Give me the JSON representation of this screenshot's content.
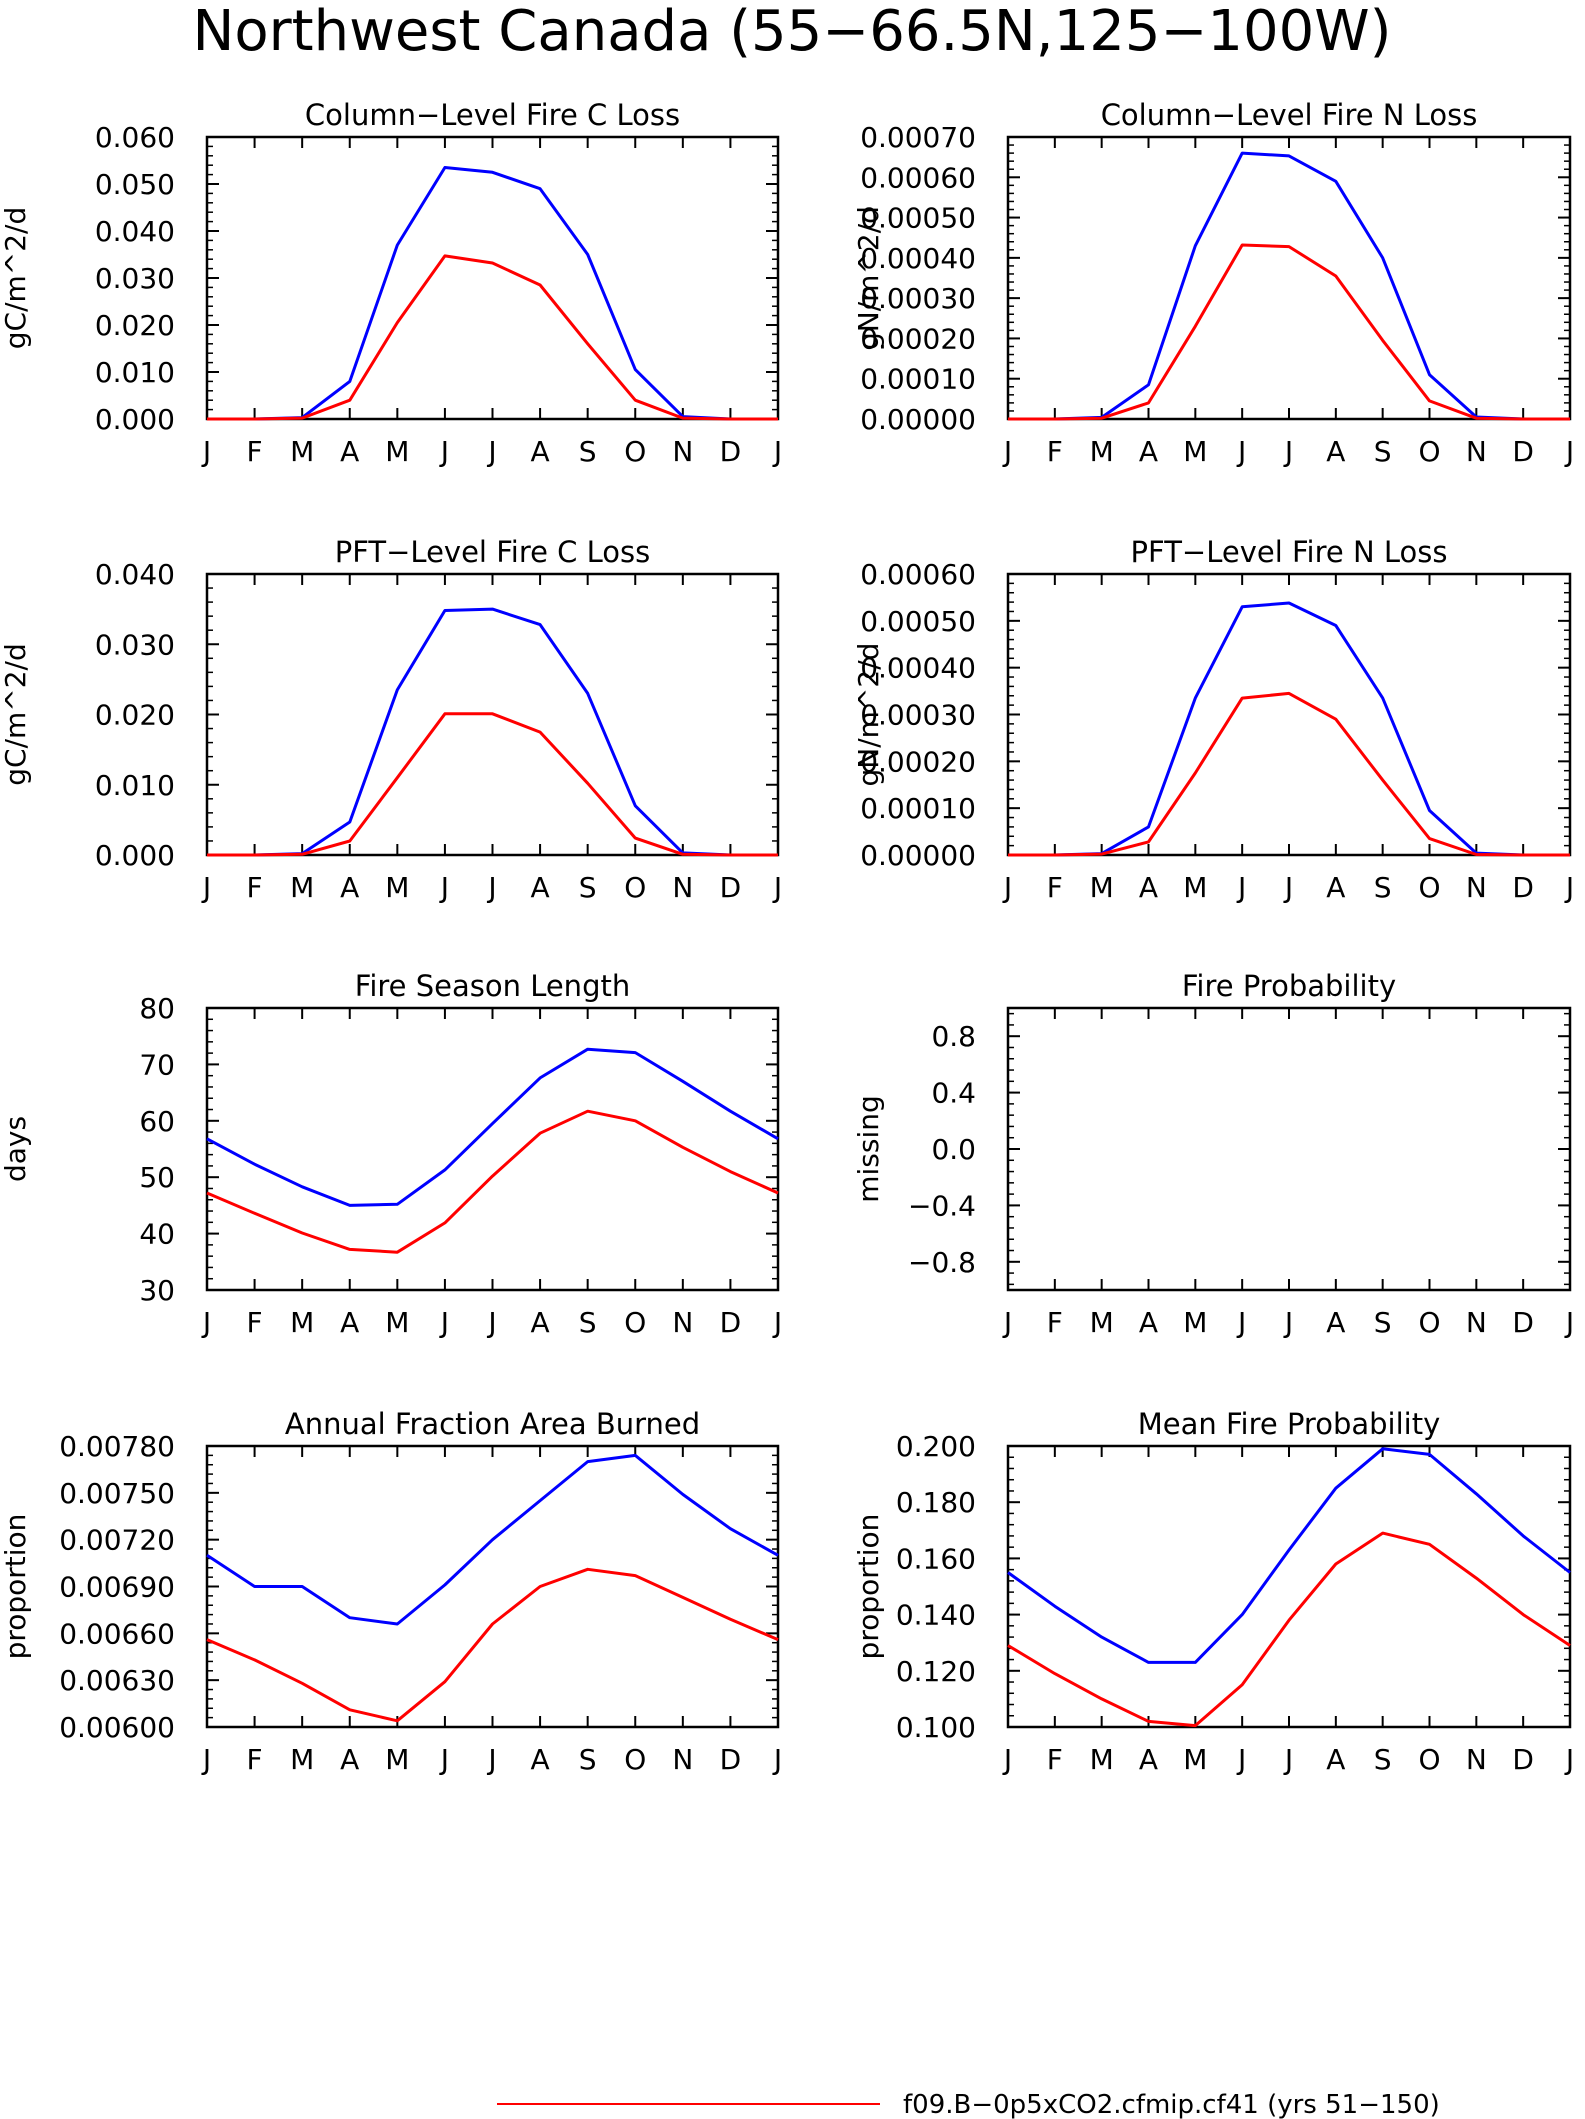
{
  "figure": {
    "title": "Northwest Canada (55−66.5N,125−100W)",
    "legend": [
      {
        "label": "f09.B−0p5xCO2.cfmip.cf41 (yrs 51−150)",
        "color": "#ff0000"
      }
    ]
  },
  "chart_data": [
    {
      "type": "line",
      "title": "Column−Level Fire C Loss",
      "ylabel": "gC/m^2/d",
      "ylim": [
        0,
        0.06
      ],
      "y_ticks": [
        "0.000",
        "0.010",
        "0.020",
        "0.030",
        "0.040",
        "0.050",
        "0.060"
      ],
      "categories": [
        "J",
        "F",
        "M",
        "A",
        "M",
        "J",
        "J",
        "A",
        "S",
        "O",
        "N",
        "D",
        "J"
      ],
      "series": [
        {
          "color": "#0000ff",
          "values": [
            0,
            0,
            0.0003,
            0.008,
            0.037,
            0.0535,
            0.0525,
            0.049,
            0.035,
            0.0105,
            0.0005,
            0,
            0
          ]
        },
        {
          "color": "#ff0000",
          "values": [
            0,
            0,
            0.0002,
            0.004,
            0.0205,
            0.0347,
            0.0332,
            0.0285,
            0.016,
            0.004,
            0.0002,
            0,
            0
          ]
        }
      ]
    },
    {
      "type": "line",
      "title": "Column−Level Fire N Loss",
      "ylabel": "gN/m^2/d",
      "ylim": [
        0,
        0.0007
      ],
      "y_ticks": [
        "0.00000",
        "0.00010",
        "0.00020",
        "0.00030",
        "0.00040",
        "0.00050",
        "0.00060",
        "0.00070"
      ],
      "categories": [
        "J",
        "F",
        "M",
        "A",
        "M",
        "J",
        "J",
        "A",
        "S",
        "O",
        "N",
        "D",
        "J"
      ],
      "series": [
        {
          "color": "#0000ff",
          "values": [
            0,
            0,
            4e-06,
            8.5e-05,
            0.00043,
            0.00066,
            0.000653,
            0.00059,
            0.0004,
            0.00011,
            5e-06,
            0,
            0
          ]
        },
        {
          "color": "#ff0000",
          "values": [
            0,
            0,
            2e-06,
            4e-05,
            0.00023,
            0.000432,
            0.000428,
            0.000355,
            0.000195,
            4.5e-05,
            2e-06,
            0,
            0
          ]
        }
      ]
    },
    {
      "type": "line",
      "title": "PFT−Level Fire C Loss",
      "ylabel": "gC/m^2/d",
      "ylim": [
        0,
        0.04
      ],
      "y_ticks": [
        "0.000",
        "0.010",
        "0.020",
        "0.030",
        "0.040"
      ],
      "categories": [
        "J",
        "F",
        "M",
        "A",
        "M",
        "J",
        "J",
        "A",
        "S",
        "O",
        "N",
        "D",
        "J"
      ],
      "series": [
        {
          "color": "#0000ff",
          "values": [
            0,
            0,
            0.0002,
            0.0047,
            0.0235,
            0.0348,
            0.035,
            0.0328,
            0.023,
            0.007,
            0.0003,
            0,
            0
          ]
        },
        {
          "color": "#ff0000",
          "values": [
            0,
            0,
            0.0001,
            0.002,
            0.011,
            0.0201,
            0.0201,
            0.0175,
            0.0102,
            0.0024,
            0.0001,
            0,
            0
          ]
        }
      ]
    },
    {
      "type": "line",
      "title": "PFT−Level Fire N Loss",
      "ylabel": "gN/m^2/d",
      "ylim": [
        0,
        0.0006
      ],
      "y_ticks": [
        "0.00000",
        "0.00010",
        "0.00020",
        "0.00030",
        "0.00040",
        "0.00050",
        "0.00060"
      ],
      "categories": [
        "J",
        "F",
        "M",
        "A",
        "M",
        "J",
        "J",
        "A",
        "S",
        "O",
        "N",
        "D",
        "J"
      ],
      "series": [
        {
          "color": "#0000ff",
          "values": [
            0,
            0,
            3e-06,
            6e-05,
            0.000335,
            0.00053,
            0.000538,
            0.00049,
            0.000335,
            9.5e-05,
            4e-06,
            0,
            0
          ]
        },
        {
          "color": "#ff0000",
          "values": [
            0,
            0,
            2e-06,
            2.8e-05,
            0.000175,
            0.000335,
            0.000345,
            0.00029,
            0.00016,
            3.5e-05,
            1e-06,
            0,
            0
          ]
        }
      ]
    },
    {
      "type": "line",
      "title": "Fire Season Length",
      "ylabel": "days",
      "ylim": [
        30,
        80
      ],
      "y_ticks": [
        "30",
        "40",
        "50",
        "60",
        "70",
        "80"
      ],
      "categories": [
        "J",
        "F",
        "M",
        "A",
        "M",
        "J",
        "J",
        "A",
        "S",
        "O",
        "N",
        "D",
        "J"
      ],
      "series": [
        {
          "color": "#0000ff",
          "values": [
            56.8,
            52.3,
            48.3,
            45,
            45.2,
            51.3,
            59.5,
            67.6,
            72.7,
            72.1,
            67,
            61.7,
            56.8
          ]
        },
        {
          "color": "#ff0000",
          "values": [
            47.2,
            43.6,
            40.1,
            37.2,
            36.7,
            41.9,
            50.2,
            57.8,
            61.7,
            60,
            55.3,
            51,
            47.2
          ]
        }
      ]
    },
    {
      "type": "line",
      "title": "Fire Probability",
      "ylabel": "missing",
      "ylim": [
        -1,
        1
      ],
      "y_ticks": [
        "−0.8",
        "−0.4",
        "0.0",
        "0.4",
        "0.8"
      ],
      "categories": [
        "J",
        "F",
        "M",
        "A",
        "M",
        "J",
        "J",
        "A",
        "S",
        "O",
        "N",
        "D",
        "J"
      ],
      "series": []
    },
    {
      "type": "line",
      "title": "Annual Fraction Area Burned",
      "ylabel": "proportion",
      "ylim": [
        0.006,
        0.0078
      ],
      "y_ticks": [
        "0.00600",
        "0.00630",
        "0.00660",
        "0.00690",
        "0.00720",
        "0.00750",
        "0.00780"
      ],
      "categories": [
        "J",
        "F",
        "M",
        "A",
        "M",
        "J",
        "J",
        "A",
        "S",
        "O",
        "N",
        "D",
        "J"
      ],
      "series": [
        {
          "color": "#0000ff",
          "values": [
            0.0071,
            0.0069,
            0.0069,
            0.0067,
            0.00666,
            0.00691,
            0.0072,
            0.00745,
            0.0077,
            0.00774,
            0.00749,
            0.00727,
            0.0071
          ]
        },
        {
          "color": "#ff0000",
          "values": [
            0.00656,
            0.00643,
            0.00628,
            0.00611,
            0.00604,
            0.00629,
            0.00666,
            0.0069,
            0.00701,
            0.00697,
            0.00683,
            0.00669,
            0.00656
          ]
        }
      ]
    },
    {
      "type": "line",
      "title": "Mean Fire Probability",
      "ylabel": "proportion",
      "ylim": [
        0.1,
        0.2
      ],
      "y_ticks": [
        "0.100",
        "0.120",
        "0.140",
        "0.160",
        "0.180",
        "0.200"
      ],
      "categories": [
        "J",
        "F",
        "M",
        "A",
        "M",
        "J",
        "J",
        "A",
        "S",
        "O",
        "N",
        "D",
        "J"
      ],
      "series": [
        {
          "color": "#0000ff",
          "values": [
            0.155,
            0.143,
            0.132,
            0.123,
            0.123,
            0.14,
            0.163,
            0.185,
            0.199,
            0.197,
            0.183,
            0.168,
            0.155
          ]
        },
        {
          "color": "#ff0000",
          "values": [
            0.129,
            0.119,
            0.11,
            0.102,
            0.1005,
            0.115,
            0.138,
            0.158,
            0.169,
            0.165,
            0.153,
            0.14,
            0.129
          ]
        }
      ]
    }
  ]
}
